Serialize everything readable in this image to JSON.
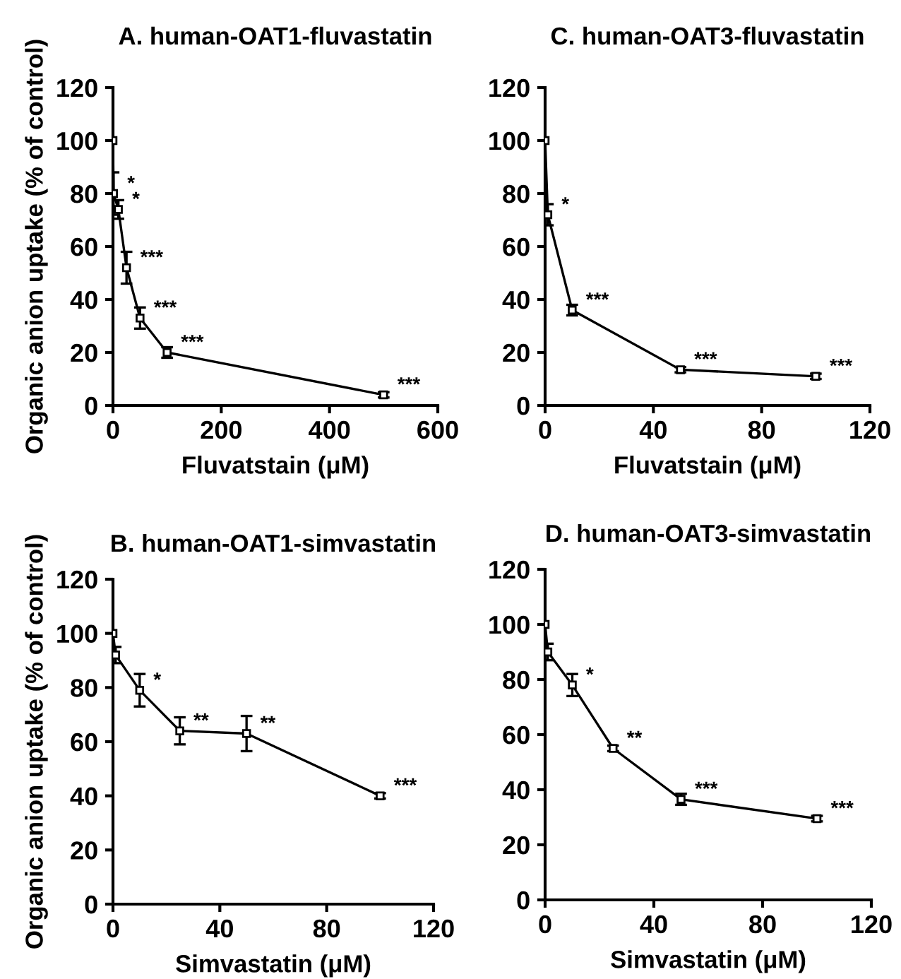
{
  "chart_data": [
    {
      "type": "line",
      "title": "A. human-OAT1-fluvastatin",
      "xlabel": "Fluvatstain (μM)",
      "ylabel": "Organic anion uptake (% of control)",
      "marker": "square",
      "line_style": "solid",
      "grid": false,
      "series": [
        {
          "color": "#000000",
          "x": [
            0,
            1,
            10,
            25,
            50,
            100,
            500
          ],
          "values": [
            100,
            80,
            74,
            52,
            33,
            20,
            4
          ],
          "errors": [
            null,
            8,
            3.5,
            6,
            4,
            2,
            1
          ]
        }
      ],
      "xlim": [
        0,
        600
      ],
      "xticks": [
        0,
        200,
        400,
        600
      ],
      "ylim": [
        0,
        120
      ],
      "yticks": [
        0,
        20,
        40,
        60,
        80,
        100,
        120
      ],
      "annotations": [
        {
          "text": "*",
          "x": 1,
          "y": 80
        },
        {
          "text": "*",
          "x": 10,
          "y": 74
        },
        {
          "text": "***",
          "x": 25,
          "y": 52
        },
        {
          "text": "***",
          "x": 50,
          "y": 33
        },
        {
          "text": "***",
          "x": 100,
          "y": 20
        },
        {
          "text": "***",
          "x": 500,
          "y": 4
        }
      ]
    },
    {
      "type": "line",
      "title": "C. human-OAT3-fluvastatin",
      "xlabel": "Fluvatstain (μM)",
      "marker": "square",
      "line_style": "solid",
      "grid": false,
      "series": [
        {
          "color": "#000000",
          "x": [
            0,
            1,
            10,
            50,
            100
          ],
          "values": [
            100,
            72,
            36,
            13.5,
            11
          ],
          "errors": [
            null,
            4,
            2,
            1,
            1
          ]
        }
      ],
      "xlim": [
        0,
        120
      ],
      "xticks": [
        0,
        40,
        80,
        120
      ],
      "ylim": [
        0,
        120
      ],
      "yticks": [
        0,
        20,
        40,
        60,
        80,
        100,
        120
      ],
      "annotations": [
        {
          "text": "*",
          "x": 1,
          "y": 72
        },
        {
          "text": "***",
          "x": 10,
          "y": 36
        },
        {
          "text": "***",
          "x": 50,
          "y": 13.5
        },
        {
          "text": "***",
          "x": 100,
          "y": 11
        }
      ]
    },
    {
      "type": "line",
      "title": "B. human-OAT1-simvastatin",
      "xlabel": "Simvastatin (μM)",
      "ylabel": "Organic anion uptake (% of control)",
      "marker": "square",
      "line_style": "solid",
      "grid": false,
      "series": [
        {
          "color": "#000000",
          "x": [
            0,
            1,
            10,
            25,
            50,
            100
          ],
          "values": [
            100,
            92,
            79,
            64,
            63,
            40
          ],
          "errors": [
            null,
            3,
            6,
            5,
            6.5,
            1
          ]
        }
      ],
      "xlim": [
        0,
        120
      ],
      "xticks": [
        0,
        40,
        80,
        120
      ],
      "ylim": [
        0,
        120
      ],
      "yticks": [
        0,
        20,
        40,
        60,
        80,
        100,
        120
      ],
      "annotations": [
        {
          "text": "*",
          "x": 10,
          "y": 79
        },
        {
          "text": "**",
          "x": 25,
          "y": 64
        },
        {
          "text": "**",
          "x": 50,
          "y": 63
        },
        {
          "text": "***",
          "x": 100,
          "y": 40
        }
      ]
    },
    {
      "type": "line",
      "title": "D. human-OAT3-simvastatin",
      "xlabel": "Simvastatin (μM)",
      "marker": "square",
      "line_style": "solid",
      "grid": false,
      "series": [
        {
          "color": "#000000",
          "x": [
            0,
            1,
            10,
            25,
            50,
            100
          ],
          "values": [
            100,
            90,
            78,
            55,
            36.5,
            29.5
          ],
          "errors": [
            null,
            3,
            4,
            1,
            2,
            1
          ]
        }
      ],
      "xlim": [
        0,
        120
      ],
      "xticks": [
        0,
        40,
        80,
        120
      ],
      "ylim": [
        0,
        120
      ],
      "yticks": [
        0,
        20,
        40,
        60,
        80,
        100,
        120
      ],
      "annotations": [
        {
          "text": "*",
          "x": 10,
          "y": 78
        },
        {
          "text": "**",
          "x": 25,
          "y": 55
        },
        {
          "text": "***",
          "x": 50,
          "y": 36.5
        },
        {
          "text": "***",
          "x": 100,
          "y": 29.5
        }
      ]
    }
  ]
}
